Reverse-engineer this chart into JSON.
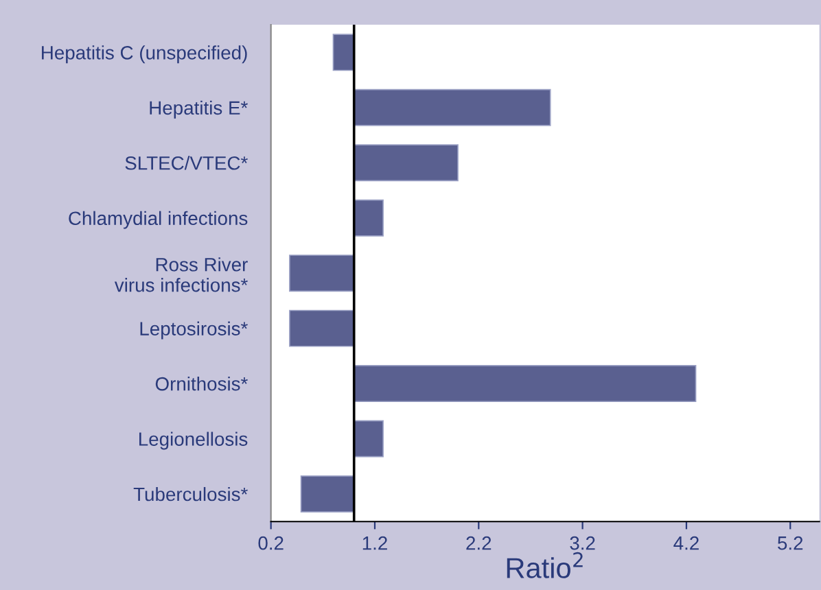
{
  "chart_data": {
    "type": "bar",
    "orientation": "horizontal",
    "xlabel": "Ratio$^{2}$",
    "categories": [
      "Hepatitis C (unspecified)",
      "Hepatitis E*",
      "SLTEC/VTEC*",
      "Chlamydial infections",
      "Ross River\nvirus infections*",
      "Leptosirosis*",
      "Ornithosis*",
      "Legionellosis",
      "Tuberculosis*"
    ],
    "base": [
      1,
      1,
      1,
      1,
      1,
      1,
      1,
      1,
      1
    ],
    "values": [
      -0.2,
      1.89,
      1.0,
      0.28,
      -0.62,
      -0.62,
      3.29,
      0.28,
      -0.51
    ],
    "color": "#5a6090",
    "xlim": [
      0.2,
      5.48
    ],
    "xticks": [
      0.2,
      1.2,
      2.2,
      3.2,
      4.2,
      5.2
    ],
    "ref_lines": [
      {
        "axis": "x",
        "value": 1,
        "color": "#000000"
      }
    ],
    "grid": false
  }
}
